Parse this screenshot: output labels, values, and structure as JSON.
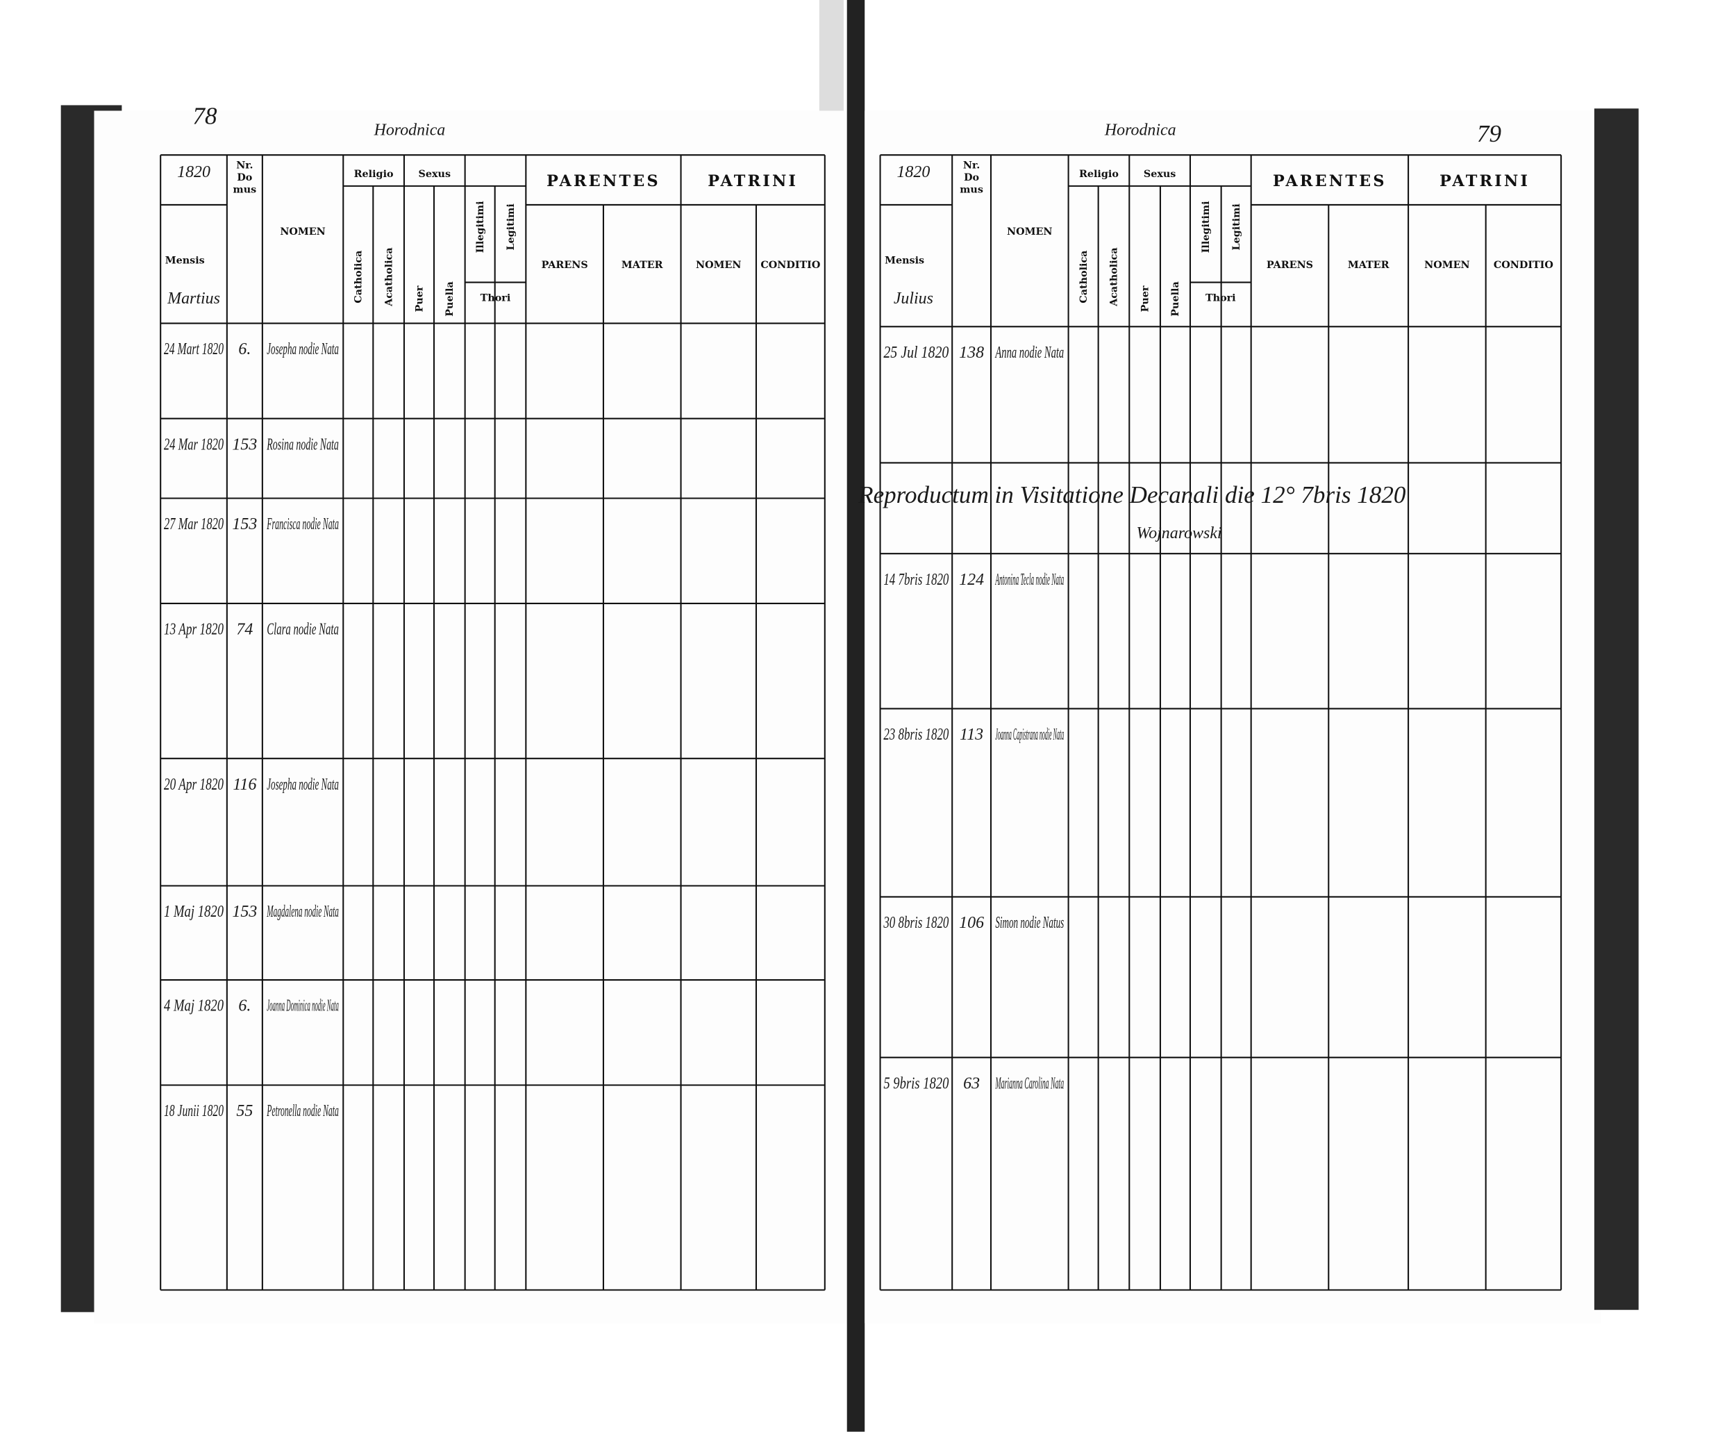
{
  "headers": {
    "nr": [
      "Nr.",
      "Do",
      "mus"
    ],
    "mensis": "Mensis",
    "nomen": "NOMEN",
    "religio": "Religio",
    "catholica": "Catholica",
    "acatholica": "Acatholica",
    "sexus": "Sexus",
    "puer": "Puer",
    "puella": "Puella",
    "illegitimi": "Illegitimi",
    "legitimi": "Legitimi",
    "thori": "Thori",
    "parentes": "PARENTES",
    "parens": "PARENS",
    "mater": "MATER",
    "patrini": "PATRINI",
    "patrini_nomen": "NOMEN",
    "conditio": "CONDITIO"
  },
  "left_page": {
    "page_number": "78",
    "place": "Horodnica",
    "year": "1820",
    "month": "Martius",
    "entries": [
      {
        "date": "24 Mart 1820",
        "house": "6.",
        "name": "Josepha nodie Nata"
      },
      {
        "date": "24 Mar 1820",
        "house": "153",
        "name": "Rosina nodie Nata"
      },
      {
        "date": "27 Mar 1820",
        "house": "153",
        "name": "Francisca nodie Nata"
      },
      {
        "date": "13 Apr 1820",
        "house": "74",
        "name": "Clara nodie Nata"
      },
      {
        "date": "20 Apr 1820",
        "house": "116",
        "name": "Josepha nodie Nata"
      },
      {
        "date": "1 Maj 1820",
        "house": "153",
        "name": "Magdalena nodie Nata"
      },
      {
        "date": "4 Maj 1820",
        "house": "6.",
        "name": "Joanna Dominica nodie Nata"
      },
      {
        "date": "18 Junii 1820",
        "house": "55",
        "name": "Petronella nodie Nata"
      }
    ]
  },
  "right_page": {
    "page_number": "79",
    "place": "Horodnica",
    "year": "1820",
    "month": "Julius",
    "note": "Reproductum in Visitatione Decanali die 12° 7bris 1820",
    "signature": "Wojnarowski",
    "entries": [
      {
        "date": "25 Jul 1820",
        "house": "138",
        "name": "Anna nodie Nata"
      },
      {
        "date": "14 7bris 1820",
        "house": "124",
        "name": "Antonina Tecla nodie Nata"
      },
      {
        "date": "23 8bris 1820",
        "house": "113",
        "name": "Joanna Capistrana nodie Nata"
      },
      {
        "date": "30 8bris 1820",
        "house": "106",
        "name": "Simon nodie Natus"
      },
      {
        "date": "5 9bris 1820",
        "house": "63",
        "name": "Marianna Carolina Nata"
      }
    ]
  }
}
